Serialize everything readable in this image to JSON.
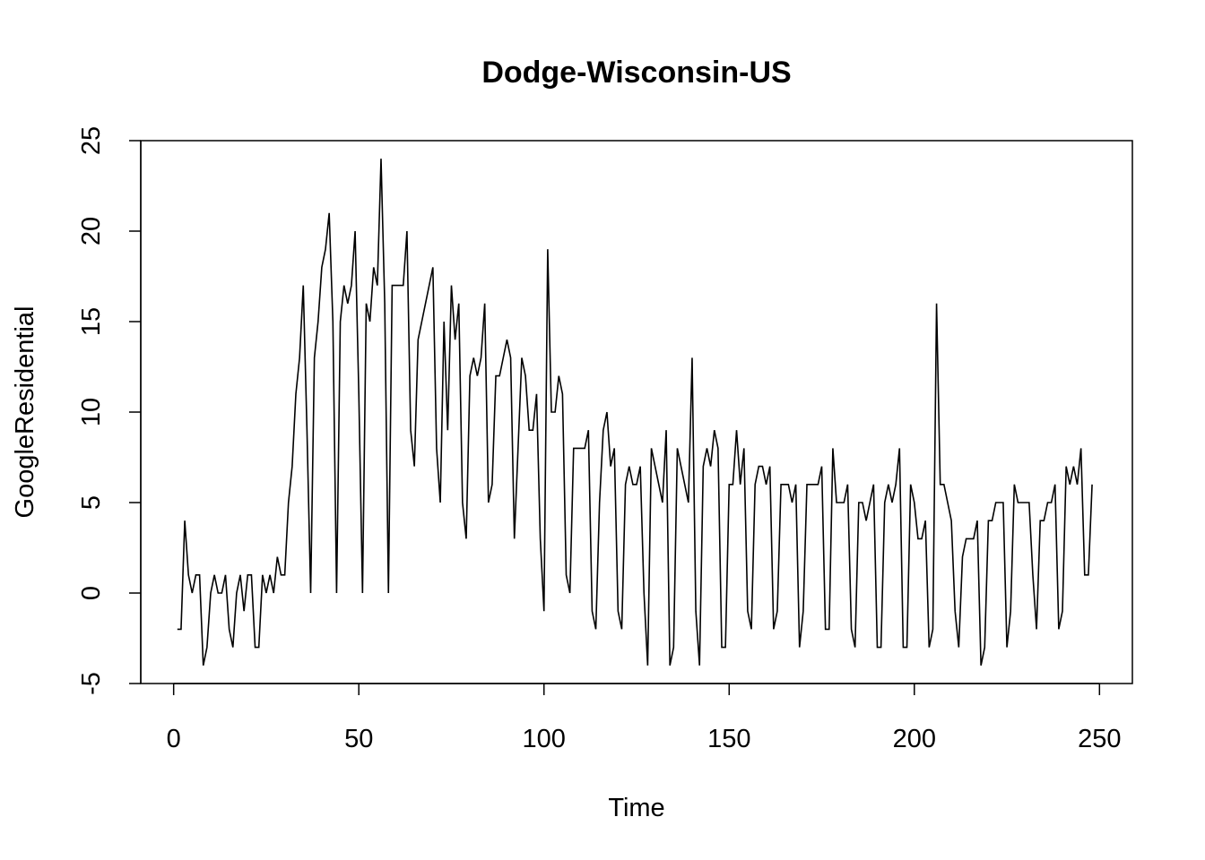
{
  "chart_data": {
    "type": "line",
    "title": "Dodge-Wisconsin-US",
    "xlabel": "Time",
    "ylabel": "GoogleResidential",
    "xlim": [
      -8.88,
      258.88
    ],
    "ylim": [
      -5,
      25
    ],
    "xticks": [
      0,
      50,
      100,
      150,
      200,
      250
    ],
    "yticks": [
      -5,
      0,
      5,
      10,
      15,
      20,
      25
    ],
    "xtick_labels": [
      "0",
      "50",
      "100",
      "150",
      "200",
      "250"
    ],
    "ytick_labels": [
      "-5",
      "0",
      "5",
      "10",
      "15",
      "20",
      "25"
    ],
    "grid": false,
    "legend": "none",
    "line_color": "#000000",
    "series": [
      {
        "x_start": 1,
        "values": [
          -2,
          -2,
          4,
          1,
          0,
          1,
          1,
          -4,
          -3,
          0,
          1,
          0,
          0,
          1,
          -2,
          -3,
          0,
          1,
          -1,
          1,
          1,
          -3,
          -3,
          1,
          0,
          1,
          0,
          2,
          1,
          1,
          5,
          7,
          11,
          13,
          17,
          9,
          0,
          13,
          15,
          18,
          19,
          21,
          15,
          0,
          15,
          17,
          16,
          17,
          20,
          11,
          0,
          16,
          15,
          18,
          17,
          24,
          16,
          0,
          17,
          17,
          17,
          17,
          20,
          9,
          7,
          14,
          15,
          16,
          17,
          18,
          8,
          5,
          15,
          9,
          17,
          14,
          16,
          5,
          3,
          12,
          13,
          12,
          13,
          16,
          5,
          6,
          12,
          12,
          13,
          14,
          13,
          3,
          8,
          13,
          12,
          9,
          9,
          11,
          3,
          -1,
          19,
          10,
          10,
          12,
          11,
          1,
          0,
          8,
          8,
          8,
          8,
          9,
          -1,
          -2,
          5,
          9,
          10,
          7,
          8,
          -1,
          -2,
          6,
          7,
          6,
          6,
          7,
          0,
          -4,
          8,
          7,
          6,
          5,
          9,
          -4,
          -3,
          8,
          7,
          6,
          5,
          13,
          -1,
          -4,
          7,
          8,
          7,
          9,
          8,
          -3,
          -3,
          6,
          6,
          9,
          6,
          8,
          -1,
          -2,
          6,
          7,
          7,
          6,
          7,
          -2,
          -1,
          6,
          6,
          6,
          5,
          6,
          -3,
          -1,
          6,
          6,
          6,
          6,
          7,
          -2,
          -2,
          8,
          5,
          5,
          5,
          6,
          -2,
          -3,
          5,
          5,
          4,
          5,
          6,
          -3,
          -3,
          5,
          6,
          5,
          6,
          8,
          -3,
          -3,
          6,
          5,
          3,
          3,
          4,
          -3,
          -2,
          16,
          6,
          6,
          5,
          4,
          -1,
          -3,
          2,
          3,
          3,
          3,
          4,
          -4,
          -3,
          4,
          4,
          5,
          5,
          5,
          -3,
          -1,
          6,
          5,
          5,
          5,
          5,
          1,
          -2,
          4,
          4,
          5,
          5,
          6,
          -2,
          -1,
          7,
          6,
          7,
          6,
          8,
          1,
          1,
          6
        ]
      }
    ]
  }
}
